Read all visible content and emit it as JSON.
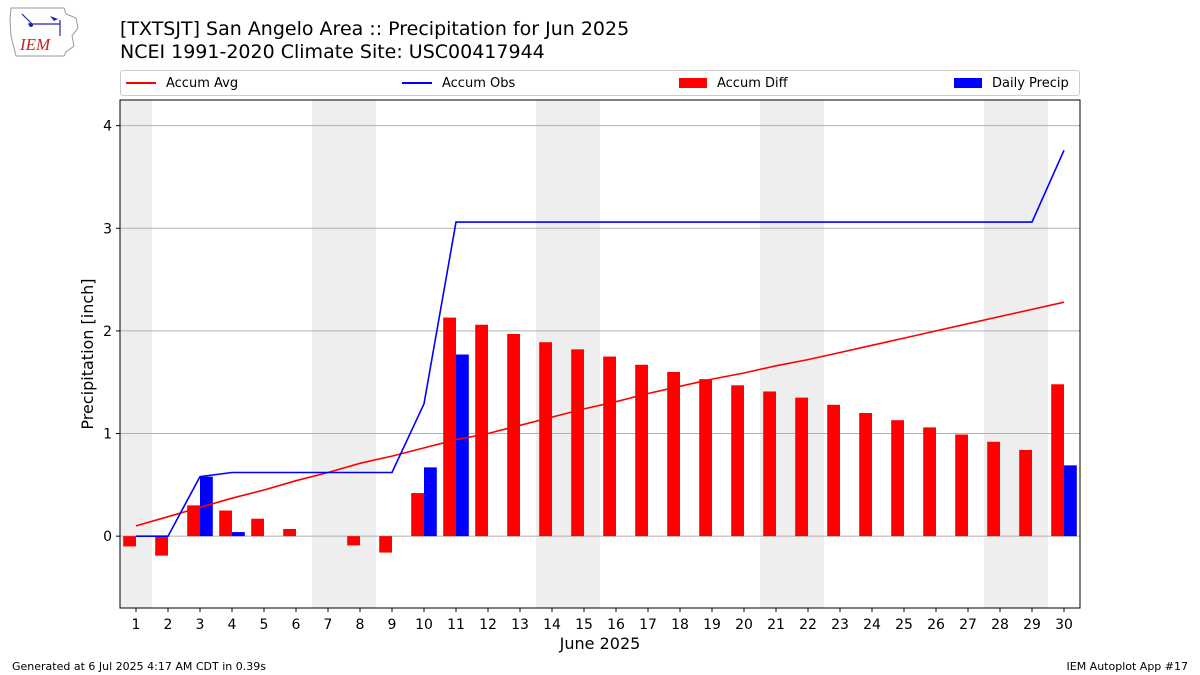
{
  "header": {
    "title_line1": "[TXTSJT] San Angelo Area :: Precipitation for Jun 2025",
    "title_line2": "NCEI 1991-2020 Climate Site: USC00417944"
  },
  "logo": {
    "text": "IEM"
  },
  "legend": {
    "accum_avg": "Accum Avg",
    "accum_obs": "Accum Obs",
    "accum_diff": "Accum Diff",
    "daily_precip": "Daily Precip"
  },
  "footer": {
    "left": "Generated at 6 Jul 2025 4:17 AM CDT in 0.39s",
    "right": "IEM Autoplot App #17"
  },
  "colors": {
    "avg": "#ff0000",
    "obs": "#0000ff",
    "diff": "#ff0000",
    "daily": "#0000ff",
    "weekend": "#eeeeee",
    "grid": "#b0b0b0"
  },
  "chart_data": {
    "type": "bar",
    "xlabel": "June 2025",
    "ylabel": "Precipitation [inch]",
    "ylim": [
      -0.7,
      4.25
    ],
    "yticks": [
      0,
      1,
      2,
      3,
      4
    ],
    "grid": "horizontal",
    "legend_position": "top",
    "days": [
      1,
      2,
      3,
      4,
      5,
      6,
      7,
      8,
      9,
      10,
      11,
      12,
      13,
      14,
      15,
      16,
      17,
      18,
      19,
      20,
      21,
      22,
      23,
      24,
      25,
      26,
      27,
      28,
      29,
      30
    ],
    "weekend_spans": [
      [
        1,
        1
      ],
      [
        7,
        8
      ],
      [
        14,
        15
      ],
      [
        21,
        22
      ],
      [
        28,
        29
      ]
    ],
    "series": [
      {
        "name": "Accum Diff",
        "kind": "bar",
        "values": [
          -0.1,
          -0.19,
          0.3,
          0.25,
          0.17,
          0.07,
          0.0,
          -0.09,
          -0.16,
          0.42,
          2.13,
          2.06,
          1.97,
          1.89,
          1.82,
          1.75,
          1.67,
          1.6,
          1.53,
          1.47,
          1.41,
          1.35,
          1.28,
          1.2,
          1.13,
          1.06,
          0.99,
          0.92,
          0.84,
          1.48
        ]
      },
      {
        "name": "Daily Precip",
        "kind": "bar",
        "values": [
          0,
          0,
          0.58,
          0.04,
          0,
          0,
          0,
          0,
          0,
          0.67,
          1.77,
          0,
          0,
          0,
          0,
          0,
          0,
          0,
          0,
          0,
          0,
          0,
          0,
          0,
          0,
          0,
          0,
          0,
          0,
          0.69
        ]
      },
      {
        "name": "Accum Avg",
        "kind": "line",
        "values": [
          0.1,
          0.19,
          0.28,
          0.37,
          0.45,
          0.54,
          0.62,
          0.71,
          0.78,
          0.86,
          0.94,
          1.0,
          1.08,
          1.16,
          1.24,
          1.31,
          1.39,
          1.46,
          1.53,
          1.59,
          1.66,
          1.72,
          1.79,
          1.86,
          1.93,
          2.0,
          2.07,
          2.14,
          2.21,
          2.28
        ]
      },
      {
        "name": "Accum Obs",
        "kind": "line",
        "values": [
          0,
          0,
          0.58,
          0.62,
          0.62,
          0.62,
          0.62,
          0.62,
          0.62,
          1.29,
          3.06,
          3.06,
          3.06,
          3.06,
          3.06,
          3.06,
          3.06,
          3.06,
          3.06,
          3.06,
          3.06,
          3.06,
          3.06,
          3.06,
          3.06,
          3.06,
          3.06,
          3.06,
          3.06,
          3.76
        ]
      }
    ]
  }
}
